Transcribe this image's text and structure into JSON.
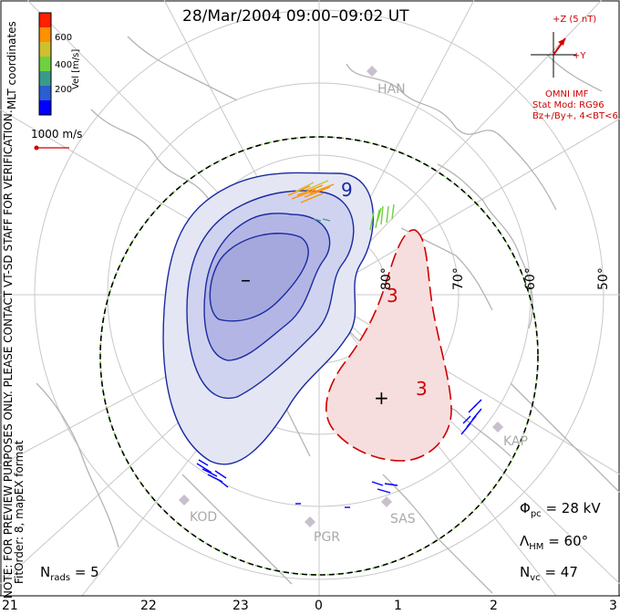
{
  "title": "28/Mar/2004 09:00–09:02 UT",
  "coords_label": "MLT coordinates",
  "note_line1": "NOTE: FOR PREVIEW PURPOSES ONLY. PLEASE CONTACT VT-SD STAFF FOR VERIFICATION.",
  "note_line2": "FitOrder: 8, mapEX format",
  "colorbar": {
    "label": "Vel [m/s]",
    "ticks": [
      "600",
      "400",
      "200"
    ],
    "colors": [
      "#0000ff",
      "#2a5fd0",
      "#3a9a8a",
      "#6fd040",
      "#d0c030",
      "#ff9000",
      "#ff2000"
    ]
  },
  "ref_vector_label": "1000 m/s",
  "imf": {
    "z_label": "+Z (5 nT)",
    "y_label": "+Y",
    "source": "OMNI IMF",
    "model_line1": "Stat Mod: RG96",
    "model_line2": "Bz+/By+, 4<BT<6",
    "color": "#d00000"
  },
  "radars": [
    "HAN",
    "KOD",
    "PGR",
    "SAS",
    "KAP"
  ],
  "latitude_labels": [
    "80°",
    "70°",
    "60°",
    "50°"
  ],
  "contours": {
    "negative_label": "9",
    "positive_label": "3",
    "neg_center": "–",
    "pos_center": "+",
    "neg_color": "#1a2aa0",
    "pos_color": "#d00000"
  },
  "stats": {
    "phi_pc": {
      "symbol": "Φ",
      "sub": "pc",
      "value": "= 28 kV"
    },
    "lambda_hm": {
      "symbol": "Λ",
      "sub": "HM",
      "value": "= 60°"
    },
    "n_vc": {
      "symbol": "N",
      "sub": "vc",
      "value": "= 47"
    },
    "n_rads": {
      "symbol": "N",
      "sub": "rads",
      "value": "= 5"
    }
  },
  "mlt_axis": [
    "21",
    "22",
    "23",
    "0",
    "1",
    "2",
    "3"
  ]
}
